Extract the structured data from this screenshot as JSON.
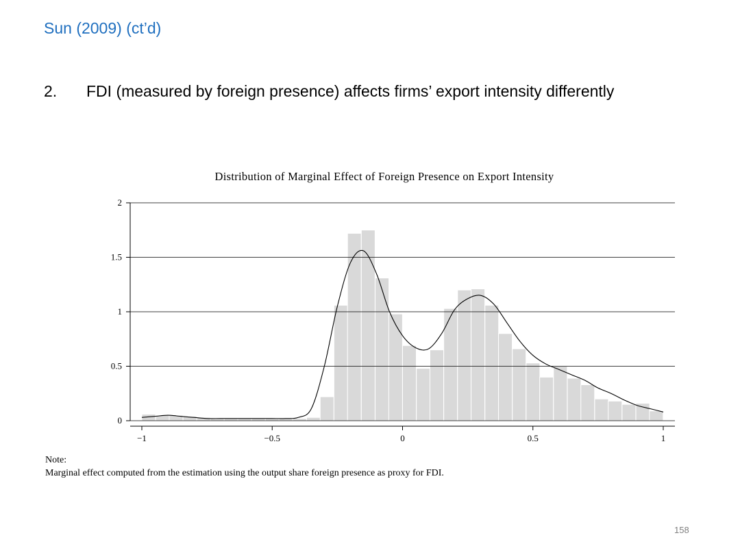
{
  "slide": {
    "title": "Sun (2009) (ct’d)",
    "bullet_number": "2.",
    "bullet_text": "FDI (measured by foreign presence) affects firms’ export intensity differently",
    "page_number": "158"
  },
  "note": {
    "label": "Note:",
    "text": "Marginal effect computed from the estimation using the output share foreign presence as proxy for FDI."
  },
  "chart_data": {
    "type": "bar",
    "title": "Distribution of Marginal Effect of Foreign Presence on Export Intensity",
    "xlabel": "",
    "ylabel": "",
    "xlim": [
      -1,
      1
    ],
    "ylim": [
      0,
      2
    ],
    "x_ticks": [
      -1,
      -0.5,
      0,
      0.5,
      1
    ],
    "x_tick_labels": [
      "−1",
      "−0.5",
      "0",
      "0.5",
      "1"
    ],
    "y_ticks": [
      0,
      0.5,
      1,
      1.5,
      2
    ],
    "y_tick_labels": [
      "0",
      "0.5",
      "1",
      "1.5",
      "2"
    ],
    "grid": "horizontal",
    "colors": {
      "bar_fill": "#d9d9d9",
      "bar_edge": "#ffffff",
      "curve": "#000000",
      "grid": "#000000"
    },
    "histogram": {
      "bin_width": 0.0526,
      "bin_starts": [
        -1.0,
        -0.947,
        -0.895,
        -0.842,
        -0.789,
        -0.737,
        -0.684,
        -0.632,
        -0.579,
        -0.526,
        -0.474,
        -0.421,
        -0.368,
        -0.316,
        -0.263,
        -0.211,
        -0.158,
        -0.105,
        -0.053,
        0.0,
        0.053,
        0.105,
        0.158,
        0.211,
        0.263,
        0.316,
        0.368,
        0.421,
        0.474,
        0.526,
        0.579,
        0.632,
        0.684,
        0.737,
        0.789,
        0.842,
        0.895,
        0.947
      ],
      "densities": [
        0.06,
        0.05,
        0.05,
        0.04,
        0.03,
        0.02,
        0.02,
        0.02,
        0.02,
        0.02,
        0.02,
        0.02,
        0.03,
        0.22,
        1.06,
        1.72,
        1.75,
        1.31,
        0.98,
        0.69,
        0.48,
        0.65,
        1.03,
        1.2,
        1.21,
        1.06,
        0.8,
        0.66,
        0.53,
        0.4,
        0.5,
        0.39,
        0.33,
        0.2,
        0.18,
        0.15,
        0.16,
        0.09
      ]
    },
    "density_curve": {
      "x": [
        -1.0,
        -0.95,
        -0.9,
        -0.85,
        -0.8,
        -0.75,
        -0.7,
        -0.65,
        -0.6,
        -0.55,
        -0.5,
        -0.45,
        -0.4,
        -0.35,
        -0.3,
        -0.25,
        -0.2,
        -0.15,
        -0.1,
        -0.05,
        0.0,
        0.05,
        0.1,
        0.15,
        0.2,
        0.25,
        0.3,
        0.35,
        0.4,
        0.45,
        0.5,
        0.55,
        0.6,
        0.65,
        0.7,
        0.75,
        0.8,
        0.85,
        0.9,
        0.95,
        1.0
      ],
      "y": [
        0.03,
        0.04,
        0.05,
        0.04,
        0.03,
        0.02,
        0.02,
        0.02,
        0.02,
        0.02,
        0.02,
        0.02,
        0.03,
        0.11,
        0.5,
        1.05,
        1.45,
        1.56,
        1.35,
        1.0,
        0.78,
        0.67,
        0.66,
        0.8,
        1.02,
        1.12,
        1.15,
        1.07,
        0.9,
        0.73,
        0.6,
        0.52,
        0.47,
        0.42,
        0.37,
        0.3,
        0.25,
        0.19,
        0.14,
        0.11,
        0.08
      ]
    }
  }
}
